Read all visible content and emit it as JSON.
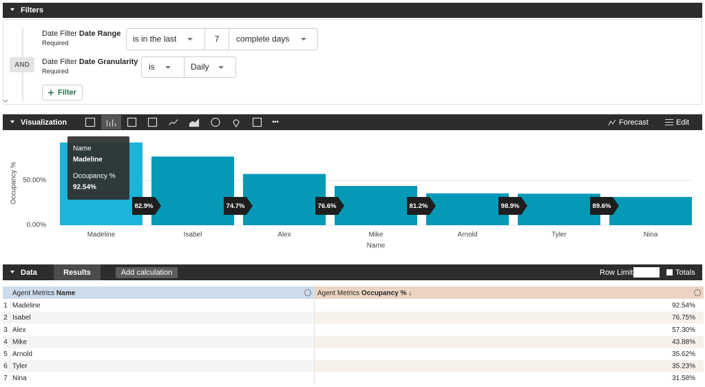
{
  "filters": {
    "title": "Filters",
    "and": "AND",
    "rows": [
      {
        "prefix": "Date Filter",
        "label": "Date Range",
        "required": "Required",
        "operator": "is in the last",
        "value": "7",
        "unit": "complete days"
      },
      {
        "prefix": "Date Filter",
        "label": "Date Granularity",
        "required": "Required",
        "operator": "is",
        "value": "Daily"
      }
    ],
    "add_filter": "Filter"
  },
  "visualization": {
    "title": "Visualization",
    "more": "•••",
    "forecast": "Forecast",
    "edit": "Edit",
    "chart_data": {
      "type": "bar",
      "x_label": "Name",
      "y_label": "Occupancy %",
      "categories": [
        "Madeline",
        "Isabel",
        "Alex",
        "Mike",
        "Arnold",
        "Tyler",
        "Nina"
      ],
      "values": [
        92.54,
        76.75,
        57.3,
        43.88,
        35.62,
        35.23,
        31.58
      ],
      "colors": [
        "#1db4d9",
        "#0499b6",
        "#0499b6",
        "#0499b6",
        "#0499b6",
        "#0499b6",
        "#0499b6"
      ],
      "ylim": [
        0,
        94
      ],
      "yticks": [
        {
          "value": 0,
          "label": "0.00%"
        },
        {
          "value": 50,
          "label": "50.00%"
        }
      ],
      "grid": true,
      "conversion": {
        "values": [
          82.9,
          74.7,
          76.6,
          81.2,
          98.9,
          89.6
        ],
        "value_labels": [
          "82.9%",
          "74.7%",
          "76.6%",
          "81.2%",
          "98.9%",
          "89.6%"
        ]
      },
      "tooltip": {
        "name_label": "Name",
        "name": "Madeline",
        "value_label": "Occupancy %",
        "value": "92.54%"
      }
    }
  },
  "data": {
    "title": "Data",
    "results": "Results",
    "add_calculation": "Add calculation",
    "row_limit": "Row Limit",
    "totals": "Totals",
    "table": {
      "columns": [
        {
          "prefix": "Agent Metrics",
          "name": "Name"
        },
        {
          "prefix": "Agent Metrics",
          "name": "Occupancy %",
          "sort": "↓"
        }
      ],
      "rows": [
        [
          1,
          "Madeline",
          "92.54%"
        ],
        [
          2,
          "Isabel",
          "76.75%"
        ],
        [
          3,
          "Alex",
          "57.30%"
        ],
        [
          4,
          "Mike",
          "43.88%"
        ],
        [
          5,
          "Arnold",
          "35.62%"
        ],
        [
          6,
          "Tyler",
          "35.23%"
        ],
        [
          7,
          "Nina",
          "31.58%"
        ]
      ]
    }
  }
}
